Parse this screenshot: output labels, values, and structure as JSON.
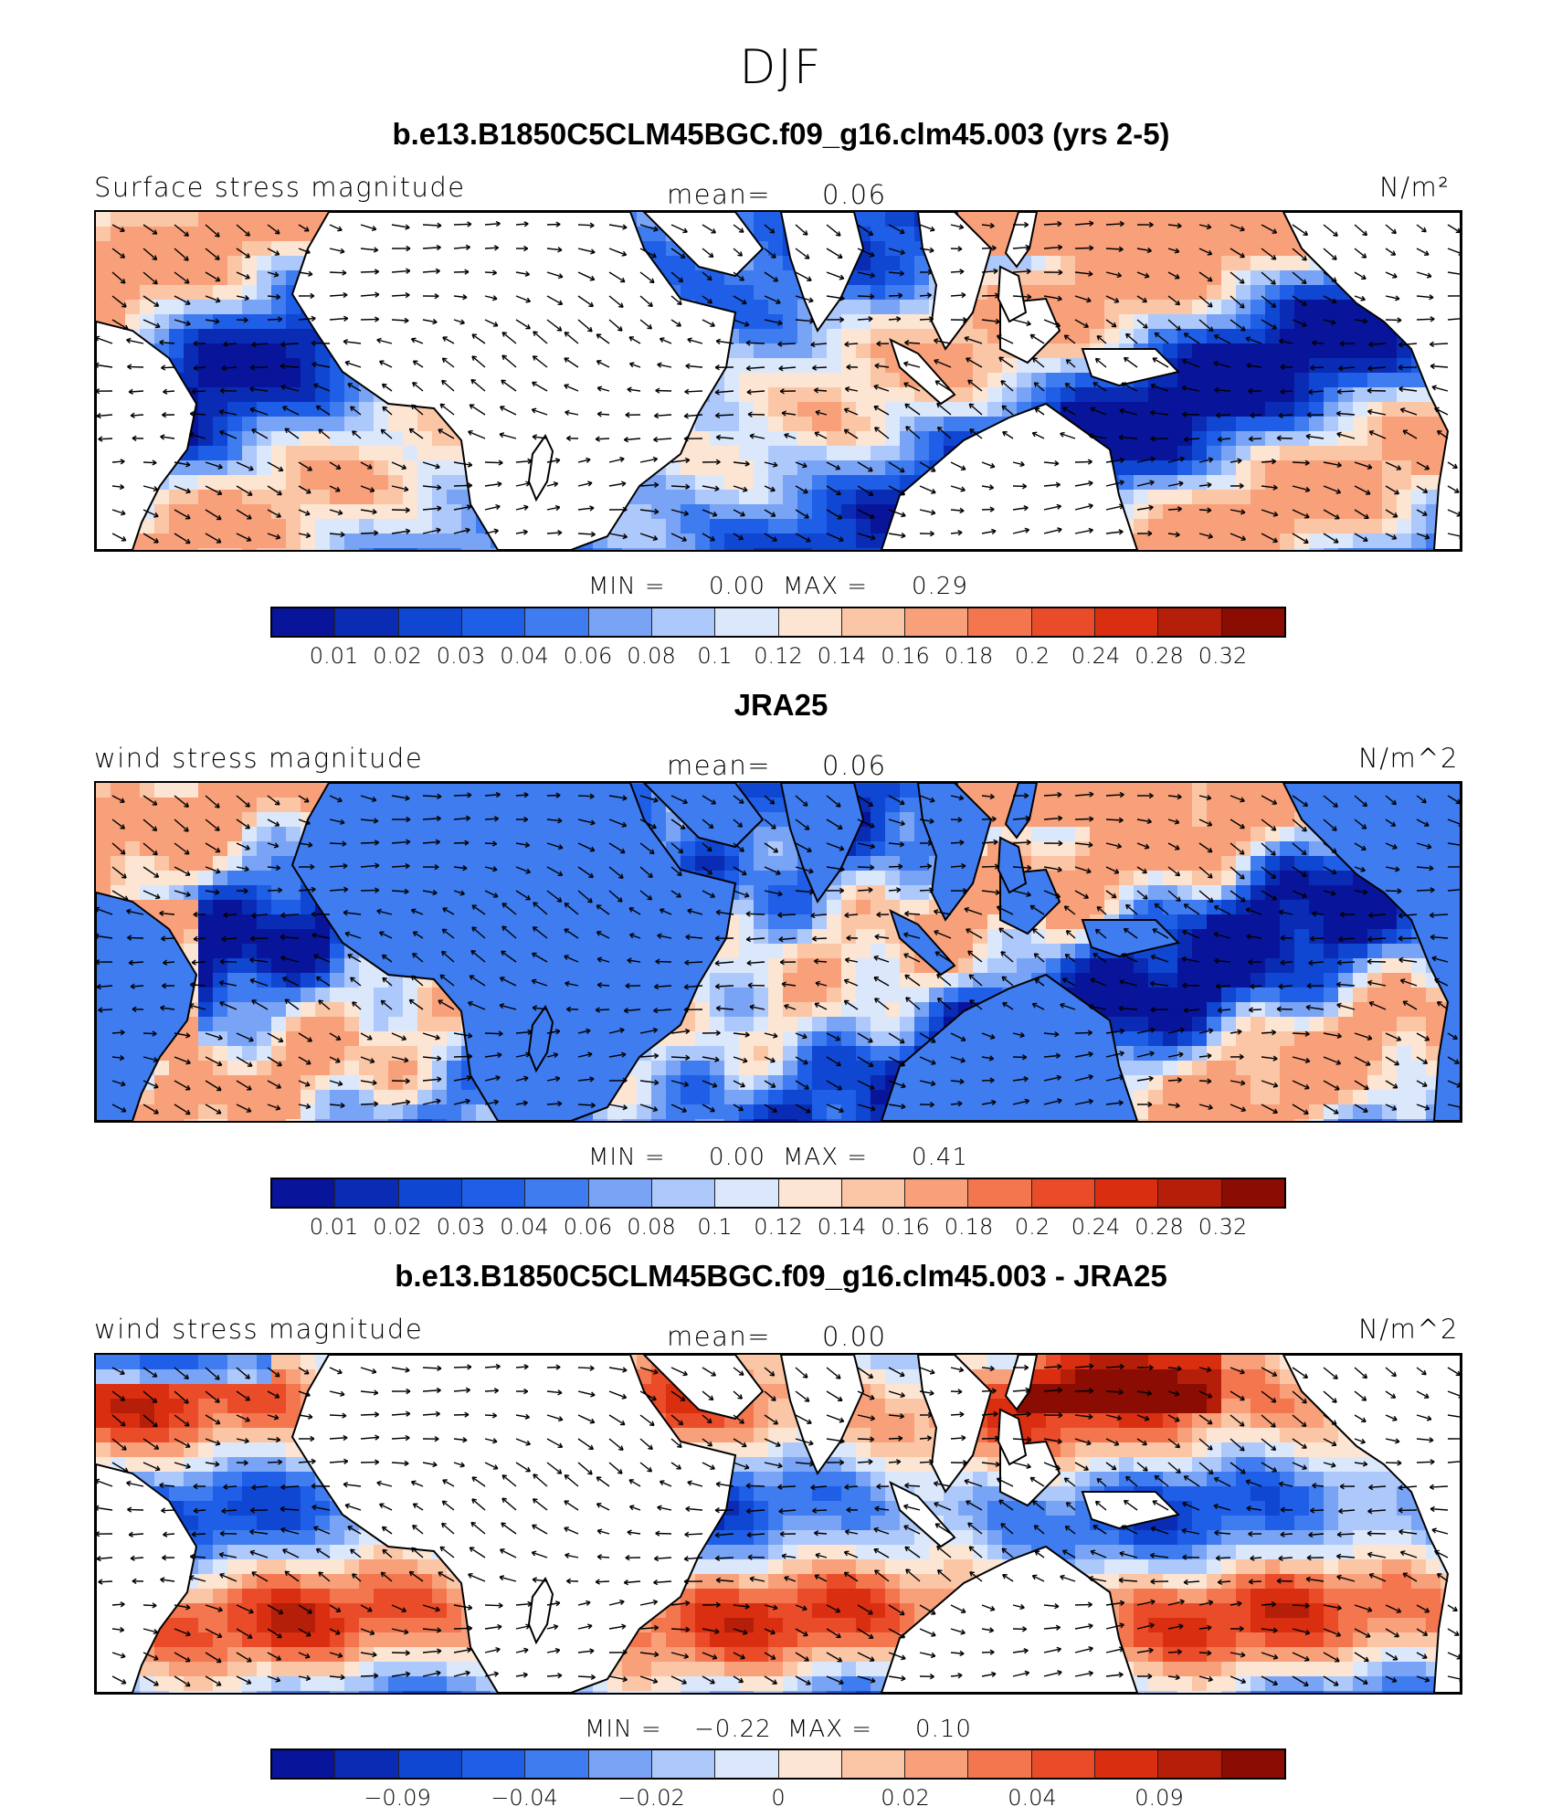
{
  "title": "DJF",
  "colors": {
    "palette": [
      "#08159a",
      "#0a2cb5",
      "#0f46d2",
      "#1f5ee6",
      "#3f7cef",
      "#79a4f5",
      "#adc8fa",
      "#dbe8fc",
      "#fde5d3",
      "#fbc6a6",
      "#f8a07a",
      "#f3764f",
      "#ea4c2a",
      "#d92e10",
      "#b51e08",
      "#8a0c02"
    ],
    "land": "#ffffff",
    "coast": "#000000"
  },
  "panels": [
    {
      "title": "b.e13.B1850C5CLM45BGC.f09_g16.clm45.003 (yrs 2-5)",
      "left_label": "Surface stress magnitude",
      "mean_label": "mean=",
      "mean_value": "0.06",
      "units": "N/m²",
      "min_label": "MIN =",
      "min_value": "0.00",
      "max_label": "MAX =",
      "max_value": "0.29",
      "colorbar_ticks": [
        "0.01",
        "0.02",
        "0.03",
        "0.04",
        "0.06",
        "0.08",
        "0.1",
        "0.12",
        "0.14",
        "0.16",
        "0.18",
        "0.2",
        "0.24",
        "0.28",
        "0.32"
      ],
      "field": "model"
    },
    {
      "title": "JRA25",
      "left_label": "wind stress magnitude",
      "mean_label": "mean=",
      "mean_value": "0.06",
      "units": "N/m^2",
      "min_label": "MIN =",
      "min_value": "0.00",
      "max_label": "MAX =",
      "max_value": "0.41",
      "colorbar_ticks": [
        "0.01",
        "0.02",
        "0.03",
        "0.04",
        "0.06",
        "0.08",
        "0.1",
        "0.12",
        "0.14",
        "0.16",
        "0.18",
        "0.2",
        "0.24",
        "0.28",
        "0.32"
      ],
      "field": "obs"
    },
    {
      "title": "b.e13.B1850C5CLM45BGC.f09_g16.clm45.003 - JRA25",
      "left_label": "wind stress magnitude",
      "mean_label": "mean=",
      "mean_value": "0.00",
      "units": "N/m^2",
      "min_label": "MIN =",
      "min_value": "−0.22",
      "max_label": "MAX =",
      "max_value": "0.10",
      "colorbar_ticks": [
        "−0.09",
        "−0.04",
        "−0.02",
        "0",
        "0.02",
        "0.04",
        "0.09"
      ],
      "field": "diff"
    }
  ]
}
